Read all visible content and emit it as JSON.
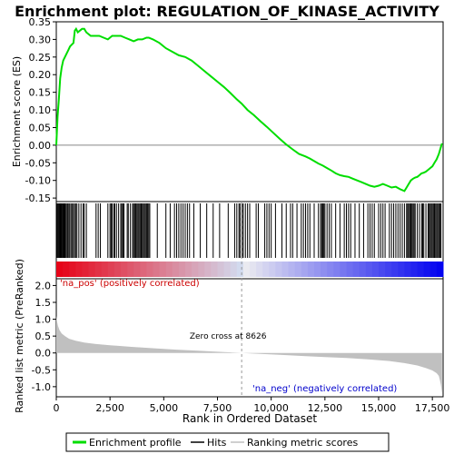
{
  "chart_data": {
    "type": "line",
    "title": "Enrichment plot: REGULATION_OF_KINASE_ACTIVITY",
    "es_panel": {
      "ylabel": "Enrichment score (ES)",
      "ylim": [
        -0.16,
        0.35
      ],
      "yticks": [
        "0.35",
        "0.30",
        "0.25",
        "0.20",
        "0.15",
        "0.10",
        "0.05",
        "0.00",
        "-0.05",
        "-0.10",
        "-0.15"
      ],
      "ytick_values": [
        0.35,
        0.3,
        0.25,
        0.2,
        0.15,
        0.1,
        0.05,
        0.0,
        -0.05,
        -0.1,
        -0.15
      ],
      "series": [
        {
          "name": "Enrichment profile",
          "color": "#00dd00",
          "x": [
            0,
            60,
            120,
            180,
            250,
            320,
            400,
            480,
            560,
            640,
            720,
            800,
            860,
            920,
            1000,
            1100,
            1200,
            1300,
            1400,
            1600,
            1800,
            2000,
            2200,
            2400,
            2600,
            2800,
            3000,
            3200,
            3400,
            3600,
            3800,
            4000,
            4200,
            4300,
            4500,
            4800,
            5100,
            5400,
            5700,
            6000,
            6300,
            6600,
            6900,
            7200,
            7500,
            7800,
            8100,
            8400,
            8626,
            8900,
            9200,
            9500,
            9800,
            10100,
            10400,
            10700,
            11000,
            11300,
            11600,
            11800,
            12000,
            12200,
            12400,
            12600,
            12800,
            13000,
            13200,
            13400,
            13600,
            13800,
            14000,
            14200,
            14400,
            14600,
            14800,
            15000,
            15200,
            15400,
            15600,
            15800,
            16000,
            16200,
            16300,
            16400,
            16500,
            16600,
            16700,
            16800,
            16900,
            17000,
            17100,
            17200,
            17300,
            17400,
            17500,
            17600,
            17700,
            17800,
            17900,
            17950
          ],
          "y": [
            0.0,
            0.08,
            0.13,
            0.19,
            0.22,
            0.24,
            0.25,
            0.26,
            0.27,
            0.28,
            0.285,
            0.29,
            0.325,
            0.33,
            0.32,
            0.325,
            0.33,
            0.33,
            0.32,
            0.31,
            0.31,
            0.31,
            0.305,
            0.3,
            0.31,
            0.31,
            0.31,
            0.305,
            0.3,
            0.295,
            0.3,
            0.3,
            0.305,
            0.305,
            0.3,
            0.29,
            0.275,
            0.265,
            0.255,
            0.25,
            0.24,
            0.225,
            0.21,
            0.195,
            0.18,
            0.165,
            0.148,
            0.13,
            0.118,
            0.1,
            0.085,
            0.068,
            0.052,
            0.035,
            0.018,
            0.002,
            -0.012,
            -0.025,
            -0.032,
            -0.038,
            -0.045,
            -0.052,
            -0.058,
            -0.065,
            -0.072,
            -0.08,
            -0.085,
            -0.088,
            -0.09,
            -0.095,
            -0.1,
            -0.105,
            -0.11,
            -0.115,
            -0.118,
            -0.115,
            -0.11,
            -0.115,
            -0.12,
            -0.118,
            -0.125,
            -0.13,
            -0.12,
            -0.11,
            -0.1,
            -0.095,
            -0.092,
            -0.09,
            -0.085,
            -0.08,
            -0.078,
            -0.075,
            -0.07,
            -0.065,
            -0.06,
            -0.05,
            -0.04,
            -0.025,
            -0.005,
            0.005
          ]
        }
      ]
    },
    "hits_panel": {
      "hit_positions": [
        30,
        70,
        110,
        150,
        190,
        230,
        260,
        300,
        340,
        380,
        420,
        470,
        520,
        560,
        620,
        680,
        730,
        790,
        850,
        900,
        960,
        1050,
        1150,
        1250,
        1300,
        1400,
        1850,
        1950,
        2050,
        2400,
        2500,
        2550,
        2600,
        2680,
        2720,
        2800,
        2900,
        3000,
        3050,
        3100,
        3150,
        3300,
        3350,
        3450,
        3550,
        3600,
        3650,
        3700,
        3750,
        3800,
        3850,
        3900,
        3950,
        4000,
        4050,
        4100,
        4150,
        4200,
        4250,
        4300,
        4350,
        4700,
        5100,
        5300,
        5500,
        5600,
        5700,
        5800,
        5900,
        6000,
        6100,
        6200,
        6400,
        6700,
        7000,
        7300,
        7600,
        8000,
        8300,
        8400,
        8500,
        8550,
        8650,
        8700,
        8800,
        8900,
        9000,
        9300,
        9400,
        9700,
        9800,
        9900,
        10000,
        10200,
        10500,
        10700,
        10900,
        11000,
        11200,
        11400,
        11500,
        11600,
        11700,
        11800,
        12000,
        12200,
        12300,
        12350,
        12400,
        12450,
        12500,
        12600,
        12700,
        12800,
        13000,
        13200,
        13400,
        13500,
        13600,
        13700,
        13900,
        14100,
        14300,
        14500,
        14600,
        14700,
        14800,
        15000,
        15100,
        15200,
        15300,
        15500,
        15600,
        15700,
        15800,
        15900,
        16000,
        16100,
        16200,
        16300,
        16350,
        16400,
        16450,
        16500,
        16550,
        16600,
        16650,
        16700,
        16800,
        16900,
        17000,
        17050,
        17100,
        17200,
        17300,
        17350,
        17400,
        17450,
        17500,
        17550,
        17600,
        17650,
        17700,
        17750,
        17800,
        17850,
        17900
      ]
    },
    "rank_panel": {
      "ylabel": "Ranked list metric (PreRanked)",
      "xlabel": "Rank in Ordered Dataset",
      "xlim": [
        0,
        18000
      ],
      "xticks": [
        "0",
        "2,500",
        "5,000",
        "7,500",
        "10,000",
        "12,500",
        "15,000",
        "17,500"
      ],
      "xtick_values": [
        0,
        2500,
        5000,
        7500,
        10000,
        12500,
        15000,
        17500
      ],
      "ylim": [
        -1.3,
        2.2
      ],
      "yticks": [
        "2.0",
        "1.5",
        "1.0",
        "0.5",
        "0.0",
        "-0.5",
        "-1.0"
      ],
      "ytick_values": [
        2.0,
        1.5,
        1.0,
        0.5,
        0.0,
        -0.5,
        -1.0
      ],
      "metric_x": [
        0,
        30,
        80,
        150,
        250,
        400,
        600,
        900,
        1300,
        1800,
        2500,
        3500,
        4500,
        5500,
        6500,
        7500,
        8626,
        9500,
        10500,
        11500,
        12500,
        13500,
        14500,
        15500,
        16200,
        16800,
        17200,
        17500,
        17700,
        17800,
        17850,
        17900,
        17950
      ],
      "metric_y": [
        1.1,
        0.95,
        0.8,
        0.68,
        0.58,
        0.5,
        0.42,
        0.36,
        0.31,
        0.27,
        0.23,
        0.18,
        0.14,
        0.1,
        0.07,
        0.035,
        0.0,
        -0.03,
        -0.06,
        -0.09,
        -0.12,
        -0.15,
        -0.19,
        -0.24,
        -0.3,
        -0.37,
        -0.45,
        -0.52,
        -0.6,
        -0.68,
        -0.8,
        -0.95,
        -1.2
      ],
      "zero_cross_label": "Zero cross at 8626",
      "zero_cross": 8626,
      "pos_label": "'na_pos' (positively correlated)",
      "neg_label": "'na_neg' (negatively correlated)"
    },
    "legend": [
      {
        "label": "Enrichment profile",
        "color": "#00dd00"
      },
      {
        "label": "Hits",
        "color": "#000000"
      },
      {
        "label": "Ranking metric scores",
        "color": "#c0c0c0"
      }
    ]
  }
}
